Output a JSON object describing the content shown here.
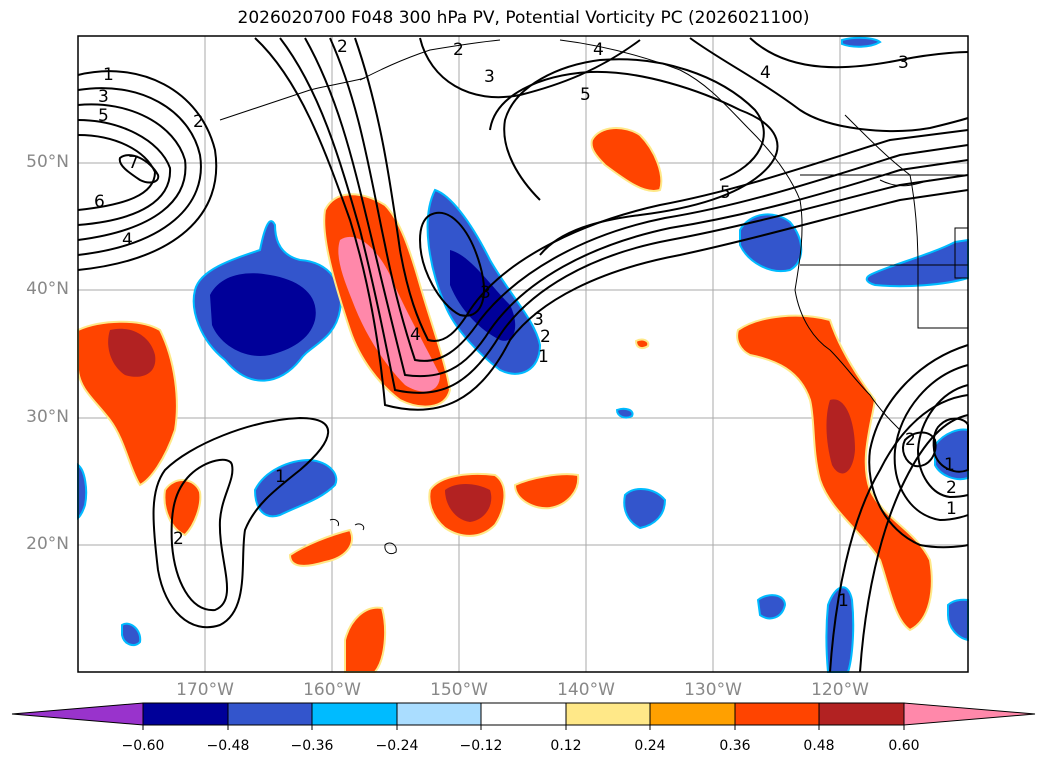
{
  "title": "2026020700 F048 300 hPa PV, Potential Vorticity PC (2026021100)",
  "lat_labels": [
    "50°N",
    "40°N",
    "30°N",
    "20°N"
  ],
  "lon_labels": [
    "170°W",
    "160°W",
    "150°W",
    "140°W",
    "130°W",
    "120°W"
  ],
  "colorbar": {
    "tick_labels": [
      "−0.60",
      "−0.48",
      "−0.36",
      "−0.24",
      "−0.12",
      "0.12",
      "0.24",
      "0.36",
      "0.48",
      "0.60"
    ],
    "colors": [
      "#9933cc",
      "#000099",
      "#3355cc",
      "#00bbff",
      "#aaddff",
      "#ffffff",
      "#ffe888",
      "#ffa000",
      "#ff4400",
      "#b22222",
      "#ff88aa",
      "#ff88aa"
    ]
  },
  "contour_labels": [
    "1",
    "3",
    "5",
    "2",
    "7",
    "6",
    "4",
    "2",
    "4",
    "2",
    "3",
    "5",
    "4",
    "3",
    "5",
    "3",
    "2",
    "1",
    "4",
    "3",
    "1",
    "2",
    "1",
    "2",
    "1",
    "2",
    "1"
  ],
  "colors": {
    "frame": "#000000",
    "grid": "#aaaaaa",
    "coast": "#000000",
    "axis_label": "#888888"
  }
}
